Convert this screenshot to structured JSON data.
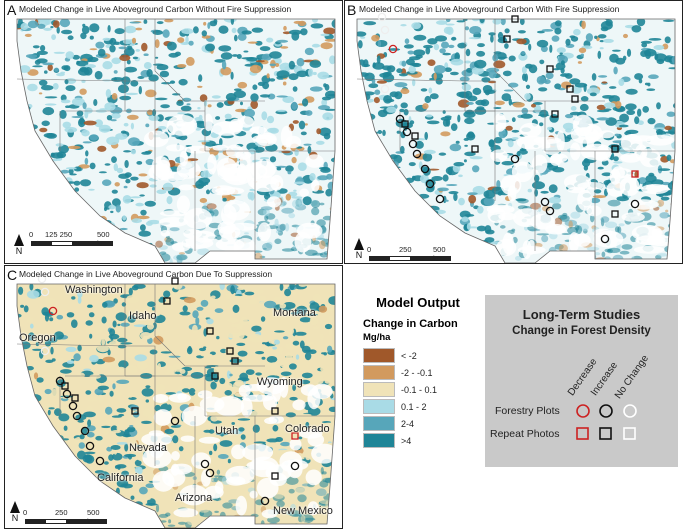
{
  "panels": {
    "a": {
      "letter": "A",
      "title": "Modeled Change in Live Aboveground Carbon Without Fire Suppression"
    },
    "b": {
      "letter": "B",
      "title": "Modeled Change in Live Aboveground Carbon With Fire Suppression"
    },
    "c": {
      "letter": "C",
      "title": "Modeled Change in Live Aboveground Carbon Due To Suppression"
    }
  },
  "scalebars": {
    "a": {
      "labels": [
        "0",
        "125 250",
        "500 km"
      ]
    },
    "b": {
      "labels": [
        "0",
        "250",
        "500 km"
      ]
    },
    "c": {
      "labels": [
        "0",
        "250",
        "500 km"
      ]
    }
  },
  "north_label": "N",
  "states": [
    {
      "name": "Washington"
    },
    {
      "name": "Idaho"
    },
    {
      "name": "Montana"
    },
    {
      "name": "Oregon"
    },
    {
      "name": "Wyoming"
    },
    {
      "name": "Nevada"
    },
    {
      "name": "Utah"
    },
    {
      "name": "Colorado"
    },
    {
      "name": "California"
    },
    {
      "name": "Arizona"
    },
    {
      "name": "New Mexico"
    }
  ],
  "model_legend": {
    "title": "Model Output",
    "subtitle": "Change in Carbon",
    "unit": "Mg/ha",
    "classes": [
      {
        "label": "< -2",
        "color": "#a0582a"
      },
      {
        "label": "-2 - -0.1",
        "color": "#d29a5e"
      },
      {
        "label": "-0.1 - 0.1",
        "color": "#f0e3b8"
      },
      {
        "label": "0.1 - 2",
        "color": "#a9dbe6"
      },
      {
        "label": "2-4",
        "color": "#57a6ba"
      },
      {
        "label": ">4",
        "color": "#1f8597"
      }
    ]
  },
  "studies_legend": {
    "title": "Long-Term Studies",
    "subtitle": "Change in Forest Density",
    "columns": [
      "Decrease",
      "Increase",
      "No Change"
    ],
    "rows": [
      "Forestry Plots",
      "Repeat Photos"
    ],
    "colors": {
      "decrease": "#cc2222",
      "increase": "#111111",
      "no_change": "#ffffff"
    }
  }
}
